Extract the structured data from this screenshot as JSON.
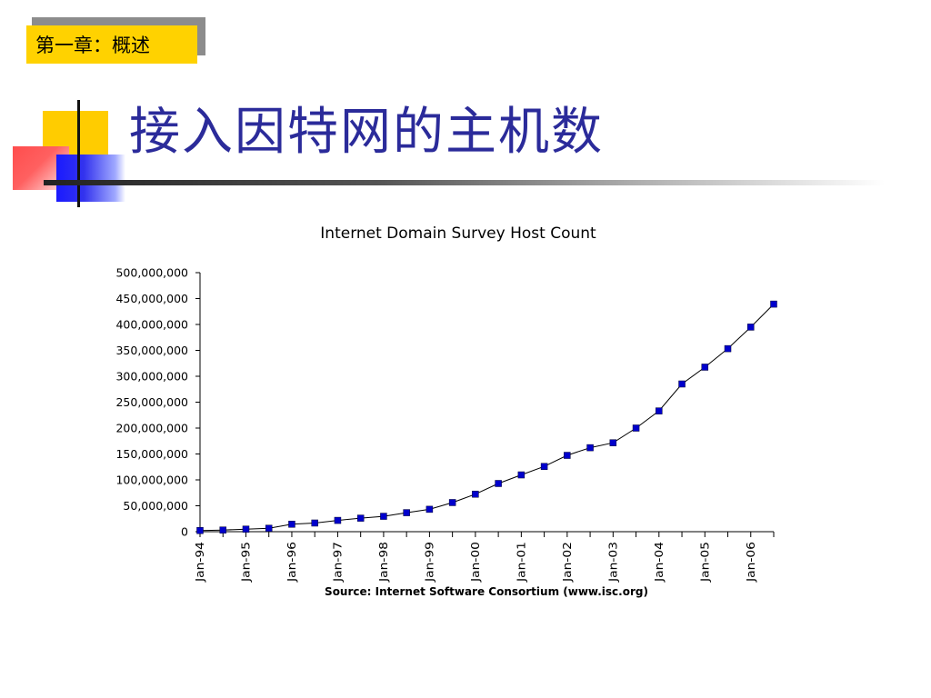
{
  "chapter_tag": "第一章：概述",
  "slide_title": "接入因特网的主机数",
  "colors": {
    "chapter_tag_bg": "#ffd200",
    "title_text": "#2b2b9a",
    "marker": "#0000cc",
    "line": "#000000"
  },
  "chart_data": {
    "type": "line",
    "title": "Internet Domain Survey Host Count",
    "source": "Source: Internet Software Consortium (www.isc.org)",
    "xlabel": "",
    "ylabel": "",
    "ylim": [
      0,
      500000000
    ],
    "grid": false,
    "legend": "none",
    "y_ticks": [
      {
        "value": 0,
        "label": "0"
      },
      {
        "value": 50000000,
        "label": "50,000,000"
      },
      {
        "value": 100000000,
        "label": "100,000,000"
      },
      {
        "value": 150000000,
        "label": "150,000,000"
      },
      {
        "value": 200000000,
        "label": "200,000,000"
      },
      {
        "value": 250000000,
        "label": "250,000,000"
      },
      {
        "value": 300000000,
        "label": "300,000,000"
      },
      {
        "value": 350000000,
        "label": "350,000,000"
      },
      {
        "value": 400000000,
        "label": "400,000,000"
      },
      {
        "value": 450000000,
        "label": "450,000,000"
      },
      {
        "value": 500000000,
        "label": "500,000,000"
      }
    ],
    "x_labels": [
      "Jan-94",
      "Jan-95",
      "Jan-96",
      "Jan-97",
      "Jan-98",
      "Jan-99",
      "Jan-00",
      "Jan-01",
      "Jan-02",
      "Jan-03",
      "Jan-04",
      "Jan-05",
      "Jan-06"
    ],
    "x": [
      "Jan-94",
      "Jul-94",
      "Jan-95",
      "Jul-95",
      "Jan-96",
      "Jul-96",
      "Jan-97",
      "Jul-97",
      "Jan-98",
      "Jul-98",
      "Jan-99",
      "Jul-99",
      "Jan-00",
      "Jul-00",
      "Jan-01",
      "Jul-01",
      "Jan-02",
      "Jul-02",
      "Jan-03",
      "Jul-03",
      "Jan-04",
      "Jul-04",
      "Jan-05",
      "Jul-05",
      "Jan-06",
      "Jul-06"
    ],
    "series": [
      {
        "values": [
          2200000,
          3200000,
          4900000,
          6600000,
          14400000,
          16700000,
          21800000,
          26100000,
          29700000,
          36700000,
          43200000,
          56200000,
          72400000,
          93000000,
          109600000,
          125900000,
          147300000,
          162100000,
          171600000,
          200000000,
          233100000,
          285100000,
          317600000,
          353300000,
          394900000,
          439300000
        ]
      }
    ]
  }
}
